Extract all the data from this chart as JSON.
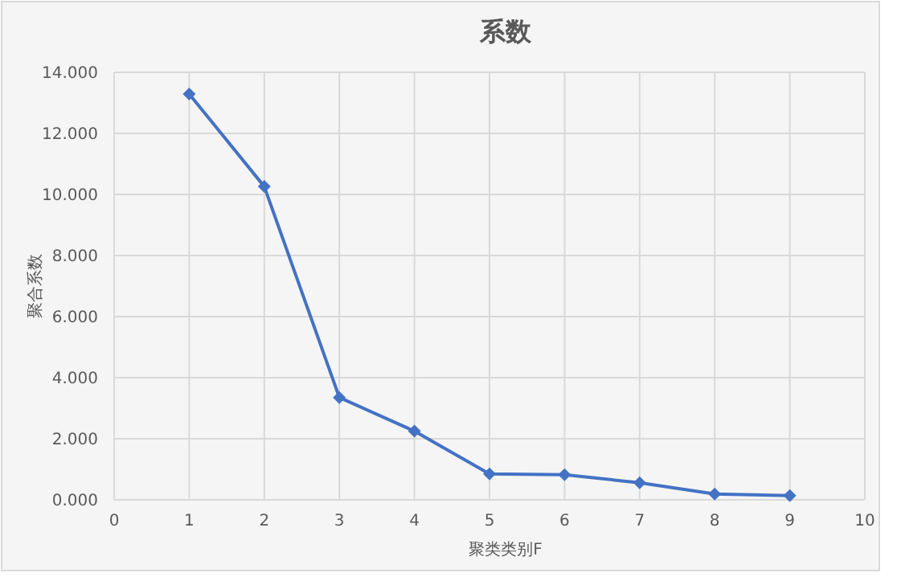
{
  "chart_data": {
    "type": "line",
    "title": "系数",
    "xlabel": "聚类类别F",
    "ylabel": "聚合系数",
    "x": [
      1,
      2,
      3,
      4,
      5,
      6,
      7,
      8,
      9
    ],
    "series": [
      {
        "color": "#4472c4",
        "values": [
          13.29,
          10.26,
          3.35,
          2.25,
          0.85,
          0.82,
          0.56,
          0.19,
          0.14
        ]
      }
    ],
    "xlim": [
      0,
      10
    ],
    "xticks": [
      0,
      1,
      2,
      3,
      4,
      5,
      6,
      7,
      8,
      9,
      10
    ],
    "ylim": [
      0,
      14
    ],
    "yticks": [
      {
        "value": 0,
        "label": "0.000"
      },
      {
        "value": 2,
        "label": "2.000"
      },
      {
        "value": 4,
        "label": "4.000"
      },
      {
        "value": 6,
        "label": "6.000"
      },
      {
        "value": 8,
        "label": "8.000"
      },
      {
        "value": 10,
        "label": "10.000"
      },
      {
        "value": 12,
        "label": "12.000"
      },
      {
        "value": 14,
        "label": "14.000"
      }
    ],
    "grid": true,
    "marker": "diamond",
    "line_style": "solid"
  }
}
